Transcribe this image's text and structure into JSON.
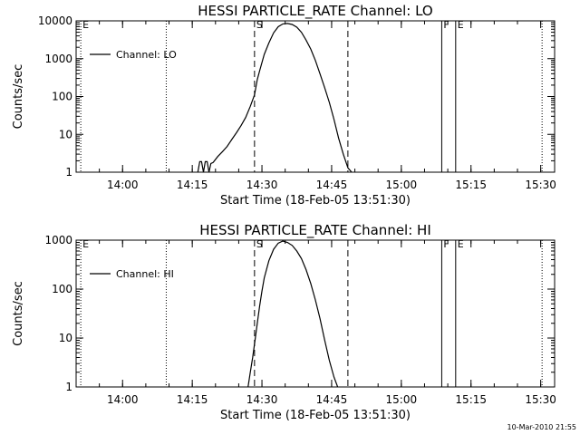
{
  "footer_timestamp": "10-Mar-2010 21:55",
  "chart_data": [
    {
      "type": "line",
      "title": "HESSI PARTICLE_RATE Channel: LO",
      "xlabel": "Start Time (18-Feb-05 13:51:30)",
      "ylabel": "Counts/sec",
      "yscale": "log",
      "ylim": [
        1,
        10000
      ],
      "xlim_minutes": [
        -1.5,
        101.5
      ],
      "x_ticks": [
        {
          "m": 8.5,
          "label": "14:00"
        },
        {
          "m": 23.5,
          "label": "14:15"
        },
        {
          "m": 38.5,
          "label": "14:30"
        },
        {
          "m": 53.5,
          "label": "14:45"
        },
        {
          "m": 68.5,
          "label": "15:00"
        },
        {
          "m": 83.5,
          "label": "15:15"
        },
        {
          "m": 98.5,
          "label": "15:30"
        }
      ],
      "y_ticks": [
        {
          "v": 1,
          "label": "1"
        },
        {
          "v": 10,
          "label": "10"
        },
        {
          "v": 100,
          "label": "100"
        },
        {
          "v": 1000,
          "label": "1000"
        },
        {
          "v": 10000,
          "label": "10000"
        }
      ],
      "legend": {
        "label": "Channel: LO",
        "position": "top-left"
      },
      "markers": [
        {
          "m": -0.5,
          "style": "dotted",
          "label": "E"
        },
        {
          "m": 17.9,
          "style": "dotted",
          "label": ""
        },
        {
          "m": 36.9,
          "style": "dashed",
          "label": "S"
        },
        {
          "m": 57.0,
          "style": "dashed",
          "label": ""
        },
        {
          "m": 77.2,
          "style": "solid",
          "label": "F"
        },
        {
          "m": 80.2,
          "style": "solid",
          "label": "E"
        },
        {
          "m": 98.8,
          "style": "dotted",
          "label": ""
        }
      ],
      "series": [
        {
          "name": "Channel: LO",
          "x": [
            24.7,
            25.1,
            25.5,
            25.9,
            26.3,
            26.7,
            27.1,
            27.5,
            28.0,
            29.0,
            30.0,
            31.0,
            32.0,
            33.0,
            34.0,
            35.0,
            36.0,
            36.9,
            37.5,
            38.0,
            39.0,
            40.0,
            41.0,
            42.0,
            43.0,
            44.0,
            45.0,
            46.0,
            47.0,
            48.0,
            49.0,
            50.0,
            51.0,
            52.0,
            53.0,
            54.0,
            55.0,
            56.0,
            57.0,
            57.8
          ],
          "y": [
            1,
            1.9,
            1.9,
            1,
            1.9,
            1.9,
            1,
            1.7,
            1.8,
            2.6,
            3.5,
            4.8,
            7.3,
            11,
            17,
            28,
            55,
            110,
            280,
            480,
            1300,
            2600,
            4800,
            7000,
            8300,
            8500,
            8000,
            6800,
            5000,
            3100,
            1800,
            900,
            400,
            170,
            70,
            25,
            8,
            3,
            1.3,
            1
          ]
        }
      ]
    },
    {
      "type": "line",
      "title": "HESSI PARTICLE_RATE Channel: HI",
      "xlabel": "Start Time (18-Feb-05 13:51:30)",
      "ylabel": "Counts/sec",
      "yscale": "log",
      "ylim": [
        1,
        1000
      ],
      "xlim_minutes": [
        -1.5,
        101.5
      ],
      "x_ticks": [
        {
          "m": 8.5,
          "label": "14:00"
        },
        {
          "m": 23.5,
          "label": "14:15"
        },
        {
          "m": 38.5,
          "label": "14:30"
        },
        {
          "m": 53.5,
          "label": "14:45"
        },
        {
          "m": 68.5,
          "label": "15:00"
        },
        {
          "m": 83.5,
          "label": "15:15"
        },
        {
          "m": 98.5,
          "label": "15:30"
        }
      ],
      "y_ticks": [
        {
          "v": 1,
          "label": "1"
        },
        {
          "v": 10,
          "label": "10"
        },
        {
          "v": 100,
          "label": "100"
        },
        {
          "v": 1000,
          "label": "1000"
        }
      ],
      "legend": {
        "label": "Channel: HI",
        "position": "top-left"
      },
      "markers": [
        {
          "m": -0.5,
          "style": "dotted",
          "label": "E"
        },
        {
          "m": 17.9,
          "style": "dotted",
          "label": ""
        },
        {
          "m": 36.9,
          "style": "dashed",
          "label": "S"
        },
        {
          "m": 57.0,
          "style": "dashed",
          "label": ""
        },
        {
          "m": 77.2,
          "style": "solid",
          "label": "F"
        },
        {
          "m": 80.2,
          "style": "solid",
          "label": "E"
        },
        {
          "m": 98.8,
          "style": "dotted",
          "label": ""
        }
      ],
      "series": [
        {
          "name": "Channel: HI",
          "x": [
            35.5,
            36.0,
            36.5,
            37.0,
            37.5,
            38.0,
            38.5,
            39.0,
            40.0,
            41.0,
            42.0,
            43.0,
            44.0,
            45.0,
            46.0,
            47.0,
            48.0,
            49.0,
            50.0,
            51.0,
            52.0,
            53.0,
            54.0,
            54.8
          ],
          "y": [
            1,
            2,
            4,
            9,
            20,
            45,
            90,
            170,
            380,
            650,
            870,
            960,
            900,
            780,
            600,
            420,
            250,
            130,
            60,
            25,
            9,
            3.5,
            1.6,
            1
          ]
        }
      ]
    }
  ]
}
